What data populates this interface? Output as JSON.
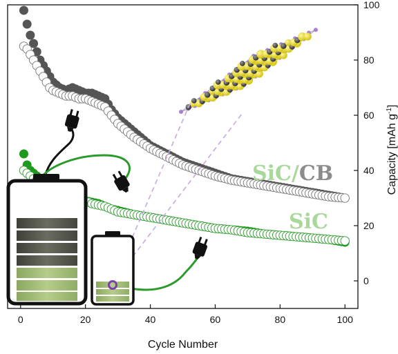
{
  "chart_data": {
    "type": "scatter",
    "xlabel": "Cycle Number",
    "ylabel_main": "Capacity [mAh g",
    "ylabel_sup": "-1",
    "ylabel_end": "]",
    "xlim": [
      -4,
      104
    ],
    "ylim": [
      -10,
      100
    ],
    "xticks": [
      0,
      20,
      40,
      60,
      80,
      100
    ],
    "yticks": [
      0,
      20,
      40,
      60,
      80,
      100
    ],
    "y_axis_side": "right",
    "grid": false,
    "series": [
      {
        "name": "SiC/CB",
        "label_parts": [
          "SiC/",
          "CB"
        ],
        "label_colors": [
          "#a8d89a",
          "#8c8c8c"
        ],
        "marker": "circle",
        "discharge_color": "#555555",
        "charge_color": "#ffffff",
        "edge_color": "#777777",
        "discharge": [
          [
            1,
            98
          ],
          [
            2,
            93
          ],
          [
            3,
            89
          ],
          [
            4,
            86
          ],
          [
            5,
            83
          ],
          [
            6,
            80
          ],
          [
            7,
            78
          ],
          [
            8,
            76
          ],
          [
            9,
            74
          ],
          [
            10,
            72
          ],
          [
            12,
            70
          ],
          [
            14,
            69
          ],
          [
            16,
            70
          ],
          [
            18,
            69
          ],
          [
            20,
            68
          ],
          [
            22,
            68
          ],
          [
            24,
            67
          ],
          [
            26,
            66
          ],
          [
            28,
            62
          ],
          [
            30,
            59
          ],
          [
            35,
            54
          ],
          [
            40,
            49
          ],
          [
            45,
            46
          ],
          [
            50,
            43
          ],
          [
            55,
            41
          ],
          [
            60,
            39
          ],
          [
            65,
            37
          ],
          [
            70,
            36
          ],
          [
            75,
            35
          ],
          [
            80,
            34
          ],
          [
            85,
            33
          ],
          [
            90,
            32
          ],
          [
            95,
            31
          ],
          [
            100,
            30
          ]
        ],
        "charge": [
          [
            1,
            85
          ],
          [
            2,
            84
          ],
          [
            3,
            82
          ],
          [
            4,
            80
          ],
          [
            5,
            78
          ],
          [
            6,
            76
          ],
          [
            7,
            74
          ],
          [
            8,
            72
          ],
          [
            9,
            70
          ],
          [
            10,
            69
          ],
          [
            12,
            68
          ],
          [
            14,
            67
          ],
          [
            16,
            67
          ],
          [
            18,
            66
          ],
          [
            20,
            66
          ],
          [
            22,
            65
          ],
          [
            24,
            64
          ],
          [
            26,
            63
          ],
          [
            28,
            60
          ],
          [
            30,
            57
          ],
          [
            35,
            52
          ],
          [
            40,
            48
          ],
          [
            45,
            45
          ],
          [
            50,
            42
          ],
          [
            55,
            40
          ],
          [
            60,
            38
          ],
          [
            65,
            36.5
          ],
          [
            70,
            35.5
          ],
          [
            75,
            34.5
          ],
          [
            80,
            33.5
          ],
          [
            85,
            32.5
          ],
          [
            90,
            31.5
          ],
          [
            95,
            30.5
          ],
          [
            100,
            30
          ]
        ]
      },
      {
        "name": "SiC",
        "label_parts": [
          "SiC"
        ],
        "label_colors": [
          "#a8d89a"
        ],
        "marker": "circle",
        "discharge_color": "#1f9a1f",
        "charge_color": "#ffffff",
        "edge_color": "#2a9a2a",
        "discharge": [
          [
            1,
            46
          ],
          [
            2,
            42
          ],
          [
            3,
            40
          ],
          [
            4,
            39
          ],
          [
            5,
            38
          ],
          [
            6,
            37
          ],
          [
            7,
            36
          ],
          [
            8,
            35.5
          ],
          [
            9,
            35
          ],
          [
            10,
            34
          ],
          [
            12,
            33
          ],
          [
            14,
            32
          ],
          [
            16,
            31
          ],
          [
            18,
            30
          ],
          [
            20,
            29
          ],
          [
            22,
            28.5
          ],
          [
            24,
            28
          ],
          [
            26,
            27
          ],
          [
            28,
            26
          ],
          [
            30,
            25.5
          ],
          [
            35,
            24
          ],
          [
            40,
            23
          ],
          [
            45,
            22
          ],
          [
            50,
            21
          ],
          [
            55,
            20
          ],
          [
            60,
            19
          ],
          [
            65,
            18.5
          ],
          [
            70,
            18
          ],
          [
            75,
            17
          ],
          [
            80,
            16.5
          ],
          [
            85,
            16
          ],
          [
            90,
            15.5
          ],
          [
            95,
            15
          ],
          [
            100,
            14
          ]
        ],
        "charge": [
          [
            1,
            40
          ],
          [
            2,
            39
          ],
          [
            3,
            38
          ],
          [
            4,
            37
          ],
          [
            5,
            36.5
          ],
          [
            6,
            36
          ],
          [
            7,
            35
          ],
          [
            8,
            34.5
          ],
          [
            9,
            34
          ],
          [
            10,
            33
          ],
          [
            12,
            32
          ],
          [
            14,
            31
          ],
          [
            16,
            30.5
          ],
          [
            18,
            29.5
          ],
          [
            20,
            29
          ],
          [
            22,
            28
          ],
          [
            24,
            27.5
          ],
          [
            26,
            27
          ],
          [
            28,
            26
          ],
          [
            30,
            25
          ],
          [
            35,
            24
          ],
          [
            40,
            23
          ],
          [
            45,
            22
          ],
          [
            50,
            21
          ],
          [
            55,
            20
          ],
          [
            60,
            19
          ],
          [
            65,
            18.5
          ],
          [
            70,
            17.5
          ],
          [
            75,
            17
          ],
          [
            80,
            16.5
          ],
          [
            85,
            16
          ],
          [
            90,
            15.5
          ],
          [
            95,
            15
          ],
          [
            100,
            14.5
          ]
        ]
      }
    ]
  },
  "colors": {
    "battery_frame": "#111111",
    "cell_dark": "#4d4f45",
    "cell_green": "#9cb86e",
    "plug_gray_wire": "#111111",
    "plug_green_wire": "#2a9a2a",
    "dashed_guide": "#c9a8e0",
    "lattice_edge": "#a59fb4",
    "lattice_node": "#a882d0",
    "si_atom": "#e6d62a",
    "c_atom": "#4a4a4a",
    "ring_marker": "#7b3fb0"
  }
}
